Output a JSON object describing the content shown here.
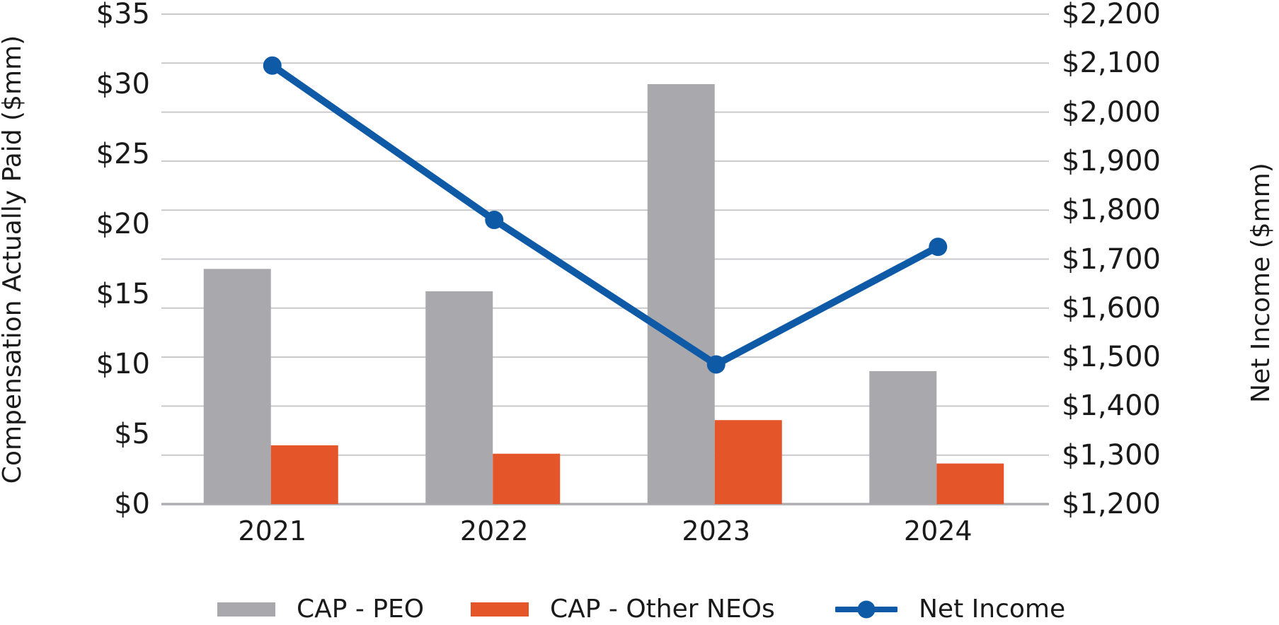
{
  "chart_data": {
    "type": "combo-bar-line",
    "categories": [
      "2021",
      "2022",
      "2023",
      "2024"
    ],
    "series": [
      {
        "name": "CAP - PEO",
        "type": "bar",
        "axis": "left",
        "color": "#A9A9AD",
        "values": [
          16.8,
          15.2,
          30.0,
          9.5
        ]
      },
      {
        "name": "CAP - Other NEOs",
        "type": "bar",
        "axis": "left",
        "color": "#E4552A",
        "values": [
          4.2,
          3.6,
          6.0,
          2.9
        ]
      },
      {
        "name": "Net Income",
        "type": "line",
        "axis": "right",
        "color": "#0E5AA7",
        "values": [
          2095,
          1780,
          1485,
          1725
        ]
      }
    ],
    "left_axis": {
      "title": "Compensation Actually Paid ($mm)",
      "min": 0,
      "max": 35,
      "step": 5,
      "tick_labels": [
        "$0",
        "$5",
        "$10",
        "$15",
        "$20",
        "$25",
        "$30",
        "$35"
      ]
    },
    "right_axis": {
      "title": "Net Income ($mm)",
      "min": 1200,
      "max": 2200,
      "step": 100,
      "tick_labels": [
        "$1,200",
        "$1,300",
        "$1,400",
        "$1,500",
        "$1,600",
        "$1,700",
        "$1,800",
        "$1,900",
        "$2,000",
        "$2,100",
        "$2,200"
      ]
    },
    "grid": {
      "horizontal": true,
      "vertical": false,
      "at": "right-axis-ticks"
    },
    "legend_position": "bottom"
  },
  "colors": {
    "gridline": "#C9C9CC",
    "axis_line": "#AFAFB3",
    "text": "#1A1A1A",
    "background": "#FFFFFF"
  }
}
